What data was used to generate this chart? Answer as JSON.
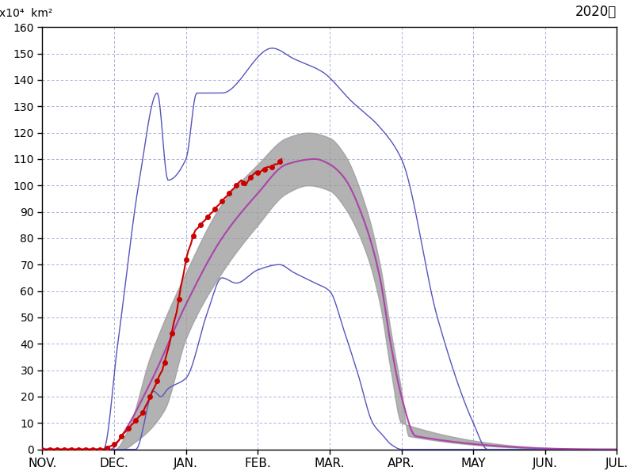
{
  "title_right": "2020年",
  "ylabel_line1": "x10⁴  km²",
  "ylim": [
    0,
    160
  ],
  "yticks": [
    0,
    10,
    20,
    30,
    40,
    50,
    60,
    70,
    80,
    90,
    100,
    110,
    120,
    130,
    140,
    150,
    160
  ],
  "months": [
    "NOV.",
    "DEC.",
    "JAN.",
    "FEB.",
    "MAR.",
    "APR.",
    "MAY",
    "JUN.",
    "JUL."
  ],
  "background_color": "#ffffff",
  "grid_color": "#8888cc",
  "line_blue_color": "#5555bb",
  "line_purple_color": "#aa44aa",
  "line_red_color": "#cc0000",
  "shade_color": "#999999",
  "dot_color": "#cc0000",
  "shade_alpha": 0.75,
  "hist_max_x": [
    0.0,
    0.85,
    1.05,
    1.35,
    1.6,
    1.75,
    2.0,
    2.15,
    2.5,
    3.2,
    3.5,
    3.9,
    4.3,
    4.7,
    5.0,
    5.5,
    6.0,
    6.2,
    8.0
  ],
  "hist_max_y": [
    0,
    0,
    40,
    102,
    135,
    102,
    110,
    135,
    135,
    152,
    148,
    143,
    132,
    122,
    110,
    50,
    10,
    0,
    0
  ],
  "hist_min_x": [
    0.0,
    1.0,
    1.1,
    1.3,
    1.55,
    1.65,
    1.75,
    2.0,
    2.3,
    2.5,
    2.7,
    3.0,
    3.3,
    3.5,
    3.8,
    4.0,
    4.2,
    4.4,
    4.6,
    4.75,
    4.85,
    5.0,
    8.0
  ],
  "hist_min_y": [
    0,
    0,
    0,
    0,
    22,
    20,
    23,
    27,
    52,
    65,
    63,
    68,
    70,
    67,
    63,
    60,
    45,
    28,
    10,
    5,
    2,
    0,
    0
  ],
  "hist_mean_x": [
    0.0,
    0.95,
    1.1,
    1.5,
    2.0,
    2.5,
    3.0,
    3.4,
    3.8,
    4.0,
    4.2,
    4.5,
    4.7,
    4.85,
    5.0,
    5.2,
    8.0
  ],
  "hist_mean_y": [
    0,
    0,
    5,
    25,
    55,
    80,
    97,
    108,
    110,
    108,
    103,
    85,
    65,
    40,
    20,
    5,
    0
  ],
  "hist_upper_x": [
    0.0,
    1.0,
    1.2,
    1.5,
    2.0,
    2.5,
    3.0,
    3.4,
    3.7,
    4.0,
    4.2,
    4.5,
    4.7,
    4.85,
    5.0,
    5.1,
    8.0
  ],
  "hist_upper_y": [
    0,
    0,
    8,
    35,
    67,
    93,
    108,
    118,
    120,
    118,
    112,
    92,
    70,
    45,
    22,
    5,
    0
  ],
  "hist_lower_x": [
    0.0,
    1.1,
    1.3,
    1.7,
    2.0,
    2.5,
    3.0,
    3.4,
    3.7,
    4.0,
    4.2,
    4.5,
    4.7,
    4.85,
    5.0,
    8.0
  ],
  "hist_lower_y": [
    0,
    0,
    3,
    15,
    42,
    67,
    85,
    97,
    100,
    98,
    92,
    75,
    55,
    30,
    10,
    0
  ],
  "red_x": [
    0.0,
    0.03,
    0.07,
    0.1,
    0.13,
    0.17,
    0.2,
    0.23,
    0.27,
    0.3,
    0.33,
    0.37,
    0.4,
    0.43,
    0.47,
    0.5,
    0.53,
    0.57,
    0.6,
    0.63,
    0.67,
    0.7,
    0.73,
    0.77,
    0.8,
    0.83,
    0.87,
    0.9,
    0.93,
    0.97,
    1.0,
    1.03,
    1.07,
    1.1,
    1.13,
    1.17,
    1.2,
    1.23,
    1.27,
    1.3,
    1.33,
    1.37,
    1.4,
    1.43,
    1.47,
    1.5,
    1.53,
    1.57,
    1.6,
    1.63,
    1.67,
    1.7,
    1.73,
    1.77,
    1.8,
    1.83,
    1.87,
    1.9,
    1.93,
    1.97,
    2.0,
    2.03,
    2.07,
    2.1,
    2.13,
    2.17,
    2.2,
    2.23,
    2.27,
    2.3,
    2.33,
    2.37,
    2.4,
    2.43,
    2.47,
    2.5,
    2.53,
    2.57,
    2.6,
    2.63,
    2.67,
    2.7,
    2.73,
    2.77,
    2.8,
    2.83,
    2.87,
    2.9,
    2.93,
    2.97,
    3.0,
    3.03,
    3.07,
    3.1,
    3.13,
    3.17,
    3.2,
    3.23,
    3.27,
    3.3,
    3.33
  ],
  "red_y": [
    0,
    0,
    0,
    0,
    0,
    0,
    0,
    0,
    0,
    0,
    0,
    0,
    0,
    0,
    0,
    0,
    0,
    0,
    0,
    0,
    0,
    0,
    0,
    0,
    0,
    0,
    0,
    0.5,
    1,
    1.5,
    2,
    2.5,
    3.5,
    5,
    6,
    7,
    8,
    9,
    10,
    11,
    12,
    13,
    14,
    16,
    18,
    20,
    22,
    24,
    26,
    28,
    30,
    33,
    36,
    40,
    44,
    48,
    52,
    57,
    62,
    67,
    72,
    75,
    78,
    81,
    83,
    84,
    85,
    86,
    87,
    88,
    89,
    90,
    91,
    92,
    93,
    94,
    95,
    96,
    97,
    98,
    99,
    100,
    101,
    102,
    101,
    100,
    102,
    103,
    104,
    105,
    105,
    105,
    106,
    106,
    107,
    107,
    107,
    108,
    108,
    109,
    110
  ]
}
